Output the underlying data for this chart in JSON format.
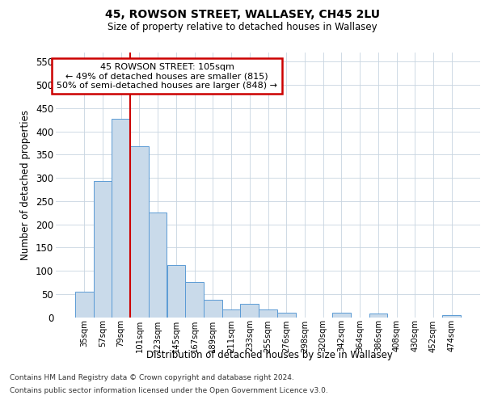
{
  "title_line1": "45, ROWSON STREET, WALLASEY, CH45 2LU",
  "title_line2": "Size of property relative to detached houses in Wallasey",
  "xlabel": "Distribution of detached houses by size in Wallasey",
  "ylabel": "Number of detached properties",
  "footnote_line1": "Contains HM Land Registry data © Crown copyright and database right 2024.",
  "footnote_line2": "Contains public sector information licensed under the Open Government Licence v3.0.",
  "annotation_title": "45 ROWSON STREET: 105sqm",
  "annotation_line2": "← 49% of detached houses are smaller (815)",
  "annotation_line3": "50% of semi-detached houses are larger (848) →",
  "bar_color": "#c9daea",
  "bar_edge_color": "#5b9bd5",
  "vline_color": "#cc0000",
  "annotation_box_edgecolor": "#cc0000",
  "background_color": "#ffffff",
  "grid_color": "#c8d4e0",
  "categories": [
    "35sqm",
    "57sqm",
    "79sqm",
    "101sqm",
    "123sqm",
    "145sqm",
    "167sqm",
    "189sqm",
    "211sqm",
    "233sqm",
    "255sqm",
    "276sqm",
    "298sqm",
    "320sqm",
    "342sqm",
    "364sqm",
    "386sqm",
    "408sqm",
    "430sqm",
    "452sqm",
    "474sqm"
  ],
  "values": [
    55,
    293,
    428,
    368,
    225,
    113,
    75,
    38,
    17,
    28,
    16,
    10,
    0,
    0,
    10,
    0,
    7,
    0,
    0,
    0,
    5
  ],
  "vline_x_index": 3.0,
  "ylim": [
    0,
    570
  ],
  "yticks": [
    0,
    50,
    100,
    150,
    200,
    250,
    300,
    350,
    400,
    450,
    500,
    550
  ]
}
